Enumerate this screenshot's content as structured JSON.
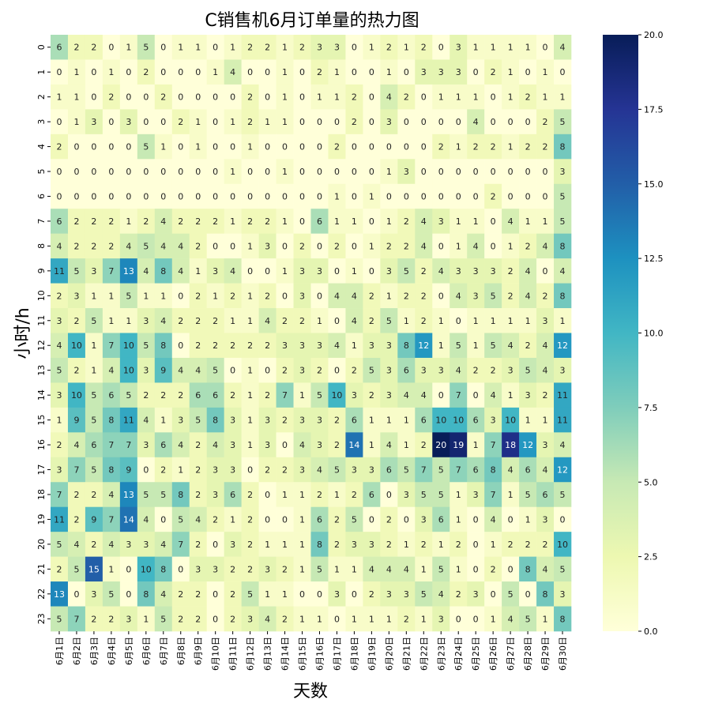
{
  "chart_data": {
    "type": "heatmap",
    "title": "C销售机6月订单量的热力图",
    "xlabel": "天数",
    "ylabel": "小时/h",
    "x_categories": [
      "6月1日",
      "6月2日",
      "6月3日",
      "6月4日",
      "6月5日",
      "6月6日",
      "6月7日",
      "6月8日",
      "6月9日",
      "6月10日",
      "6月11日",
      "6月12日",
      "6月13日",
      "6月14日",
      "6月15日",
      "6月16日",
      "6月17日",
      "6月18日",
      "6月19日",
      "6月20日",
      "6月21日",
      "6月22日",
      "6月23日",
      "6月24日",
      "6月25日",
      "6月26日",
      "6月27日",
      "6月28日",
      "6月29日",
      "6月30日"
    ],
    "y_categories": [
      "0",
      "1",
      "2",
      "3",
      "4",
      "5",
      "6",
      "7",
      "8",
      "9",
      "10",
      "11",
      "12",
      "13",
      "14",
      "15",
      "16",
      "17",
      "18",
      "19",
      "20",
      "21",
      "22",
      "23"
    ],
    "values": [
      [
        6,
        2,
        2,
        0,
        1,
        5,
        0,
        1,
        1,
        0,
        1,
        2,
        2,
        1,
        2,
        3,
        3,
        0,
        1,
        2,
        1,
        2,
        0,
        3,
        1,
        1,
        1,
        1,
        0,
        4
      ],
      [
        0,
        1,
        0,
        1,
        0,
        2,
        0,
        0,
        0,
        1,
        4,
        0,
        0,
        1,
        0,
        2,
        1,
        0,
        0,
        1,
        0,
        3,
        3,
        3,
        0,
        2,
        1,
        0,
        1,
        0
      ],
      [
        1,
        1,
        0,
        2,
        0,
        0,
        2,
        0,
        0,
        0,
        0,
        2,
        0,
        1,
        0,
        1,
        1,
        2,
        0,
        4,
        2,
        0,
        1,
        1,
        1,
        0,
        1,
        2,
        1,
        1
      ],
      [
        0,
        1,
        3,
        0,
        3,
        0,
        0,
        2,
        1,
        0,
        1,
        2,
        1,
        1,
        0,
        0,
        0,
        2,
        0,
        3,
        0,
        0,
        0,
        0,
        4,
        0,
        0,
        0,
        2,
        5
      ],
      [
        2,
        0,
        0,
        0,
        0,
        5,
        1,
        0,
        1,
        0,
        0,
        1,
        0,
        0,
        0,
        0,
        2,
        0,
        0,
        0,
        0,
        0,
        2,
        1,
        2,
        2,
        1,
        2,
        2,
        8
      ],
      [
        0,
        0,
        0,
        0,
        0,
        0,
        0,
        0,
        0,
        0,
        1,
        0,
        0,
        1,
        0,
        0,
        0,
        0,
        0,
        1,
        3,
        0,
        0,
        0,
        0,
        0,
        0,
        0,
        0,
        3
      ],
      [
        0,
        0,
        0,
        0,
        0,
        0,
        0,
        0,
        0,
        0,
        0,
        0,
        0,
        0,
        0,
        0,
        1,
        0,
        1,
        0,
        0,
        0,
        0,
        0,
        0,
        2,
        0,
        0,
        0,
        5
      ],
      [
        6,
        2,
        2,
        2,
        1,
        2,
        4,
        2,
        2,
        2,
        1,
        2,
        2,
        1,
        0,
        6,
        1,
        1,
        0,
        1,
        2,
        4,
        3,
        1,
        1,
        0,
        4,
        1,
        1,
        5
      ],
      [
        4,
        2,
        2,
        2,
        4,
        5,
        4,
        4,
        2,
        0,
        0,
        1,
        3,
        0,
        2,
        0,
        2,
        0,
        1,
        2,
        2,
        4,
        0,
        1,
        4,
        0,
        1,
        2,
        4,
        8
      ],
      [
        11,
        5,
        3,
        7,
        13,
        4,
        8,
        4,
        1,
        3,
        4,
        0,
        0,
        1,
        3,
        3,
        0,
        1,
        0,
        3,
        5,
        2,
        4,
        3,
        3,
        3,
        2,
        4,
        0,
        4
      ],
      [
        2,
        3,
        1,
        1,
        5,
        1,
        1,
        0,
        2,
        1,
        2,
        1,
        2,
        0,
        3,
        0,
        4,
        4,
        2,
        1,
        2,
        2,
        0,
        4,
        3,
        5,
        2,
        4,
        2,
        8
      ],
      [
        3,
        2,
        5,
        1,
        1,
        3,
        4,
        2,
        2,
        2,
        1,
        1,
        4,
        2,
        2,
        1,
        0,
        4,
        2,
        5,
        1,
        2,
        1,
        0,
        1,
        1,
        1,
        1,
        3,
        1
      ],
      [
        4,
        10,
        1,
        7,
        10,
        5,
        8,
        0,
        2,
        2,
        2,
        2,
        2,
        3,
        3,
        3,
        4,
        1,
        3,
        3,
        8,
        12,
        1,
        5,
        1,
        5,
        4,
        2,
        4,
        12
      ],
      [
        5,
        2,
        1,
        4,
        10,
        3,
        9,
        4,
        4,
        5,
        0,
        1,
        0,
        2,
        3,
        2,
        0,
        2,
        5,
        3,
        6,
        3,
        3,
        4,
        2,
        2,
        3,
        5,
        4,
        3
      ],
      [
        3,
        10,
        5,
        6,
        5,
        2,
        2,
        2,
        6,
        6,
        2,
        1,
        2,
        7,
        1,
        5,
        10,
        3,
        2,
        3,
        4,
        4,
        0,
        7,
        0,
        4,
        1,
        3,
        2,
        11
      ],
      [
        1,
        9,
        5,
        8,
        11,
        4,
        1,
        3,
        5,
        8,
        3,
        1,
        3,
        2,
        3,
        3,
        2,
        6,
        1,
        1,
        1,
        6,
        10,
        10,
        6,
        3,
        10,
        1,
        1,
        11
      ],
      [
        2,
        4,
        6,
        7,
        7,
        3,
        6,
        4,
        2,
        4,
        3,
        1,
        3,
        0,
        4,
        3,
        2,
        14,
        1,
        4,
        1,
        2,
        20,
        19,
        1,
        7,
        18,
        12,
        3,
        4
      ],
      [
        3,
        7,
        5,
        8,
        9,
        0,
        2,
        1,
        2,
        3,
        3,
        0,
        2,
        2,
        3,
        4,
        5,
        3,
        3,
        6,
        5,
        7,
        5,
        7,
        6,
        8,
        4,
        6,
        4,
        12
      ],
      [
        7,
        2,
        2,
        4,
        13,
        5,
        5,
        8,
        2,
        3,
        6,
        2,
        0,
        1,
        1,
        2,
        1,
        2,
        6,
        0,
        3,
        5,
        5,
        1,
        3,
        7,
        1,
        5,
        6,
        5
      ],
      [
        11,
        2,
        9,
        7,
        14,
        4,
        0,
        5,
        4,
        2,
        1,
        2,
        0,
        0,
        1,
        6,
        2,
        5,
        0,
        2,
        0,
        3,
        6,
        1,
        0,
        4,
        0,
        1,
        3,
        0
      ],
      [
        5,
        4,
        2,
        4,
        3,
        3,
        4,
        7,
        2,
        0,
        3,
        2,
        1,
        1,
        1,
        8,
        2,
        3,
        3,
        2,
        1,
        2,
        1,
        2,
        0,
        1,
        2,
        2,
        2,
        10
      ],
      [
        2,
        5,
        15,
        1,
        0,
        10,
        8,
        0,
        3,
        3,
        2,
        2,
        3,
        2,
        1,
        5,
        1,
        1,
        4,
        4,
        4,
        1,
        5,
        1,
        0,
        2,
        0,
        8,
        4,
        5
      ],
      [
        13,
        0,
        3,
        5,
        0,
        8,
        4,
        2,
        2,
        0,
        2,
        5,
        1,
        1,
        0,
        0,
        3,
        0,
        2,
        3,
        3,
        5,
        4,
        2,
        3,
        0,
        5,
        0,
        8,
        3
      ],
      [
        5,
        7,
        2,
        2,
        3,
        1,
        5,
        2,
        2,
        0,
        2,
        3,
        4,
        2,
        1,
        1,
        0,
        1,
        1,
        1,
        2,
        1,
        3,
        0,
        0,
        1,
        4,
        5,
        1,
        8
      ]
    ],
    "vmin": 0,
    "vmax": 20,
    "colorbar_ticks": [
      "0.0",
      "2.5",
      "5.0",
      "7.5",
      "10.0",
      "12.5",
      "15.0",
      "17.5",
      "20.0"
    ],
    "colormap": "YlGnBu",
    "colormap_stops": [
      "#ffffd9",
      "#edf8b1",
      "#c7e9b4",
      "#7fcdbb",
      "#41b6c4",
      "#1d91c0",
      "#225ea8",
      "#253494",
      "#081d58"
    ]
  }
}
